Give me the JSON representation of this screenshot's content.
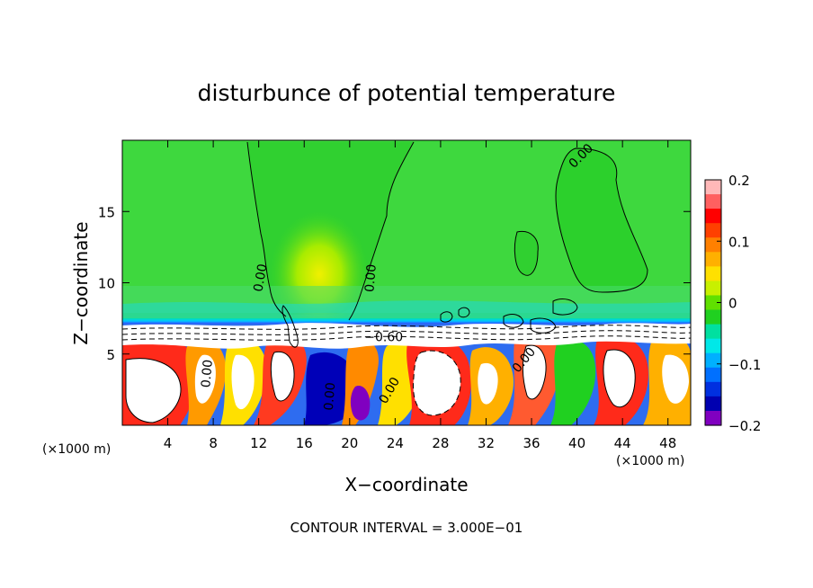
{
  "chart_data": {
    "type": "heatmap",
    "title": "disturbunce of potential temperature",
    "xlabel": "X−coordinate",
    "ylabel": "Z−coordinate",
    "x_unit": "(×1000 m)",
    "x_unit_right": "(×1000 m)",
    "xlim": [
      0,
      50
    ],
    "ylim": [
      0,
      20
    ],
    "x_ticks": [
      4,
      8,
      12,
      16,
      20,
      24,
      28,
      32,
      36,
      40,
      44,
      48
    ],
    "y_ticks": [
      5,
      10,
      15
    ],
    "colorbar": {
      "min": -0.2,
      "max": 0.2,
      "ticks": [
        0.2,
        0.1,
        0,
        -0.1,
        -0.2
      ],
      "tick_labels": [
        "0.2",
        "0.1",
        "0",
        "−0.1",
        "−0.2"
      ],
      "colors": [
        "#ffb8b8",
        "#ff6060",
        "#ff0000",
        "#ff4000",
        "#ff8000",
        "#ffb000",
        "#ffe000",
        "#c8f000",
        "#60e000",
        "#20d020",
        "#00e0a0",
        "#00e8e8",
        "#00b0ff",
        "#0070ff",
        "#0030e0",
        "#0000b0",
        "#8000c0"
      ]
    },
    "contour_labels": [
      "0.00",
      "0.00",
      "0.00",
      "0.00",
      "−0.60",
      "0.00",
      "0.00",
      "0.00"
    ],
    "contour_interval_text": "CONTOUR INTERVAL = 3.000E−01",
    "grid": false
  }
}
